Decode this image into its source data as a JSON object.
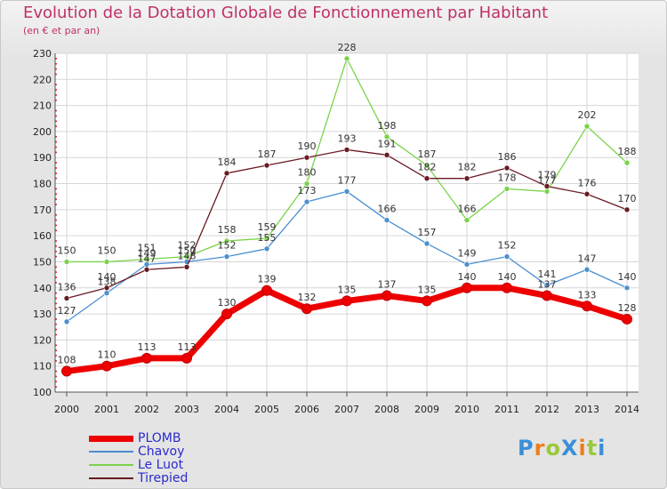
{
  "chart_data": {
    "type": "line",
    "title": "Evolution de la Dotation Globale de Fonctionnement par Habitant",
    "subtitle": "(en € et par an)",
    "x": [
      2000,
      2001,
      2002,
      2003,
      2004,
      2005,
      2006,
      2007,
      2008,
      2009,
      2010,
      2011,
      2012,
      2013,
      2014
    ],
    "ylim": [
      100,
      230
    ],
    "yticks": [
      100,
      110,
      120,
      130,
      140,
      150,
      160,
      170,
      180,
      190,
      200,
      210,
      220,
      230
    ],
    "grid": true,
    "legend_position": "bottom-left",
    "series": [
      {
        "name": "PLOMB",
        "color": "#ee0000",
        "values": [
          108,
          110,
          113,
          113,
          130,
          139,
          132,
          135,
          137,
          135,
          140,
          140,
          137,
          133,
          128
        ]
      },
      {
        "name": "Chavoy",
        "color": "#4a8fd0",
        "values": [
          127,
          138,
          149,
          150,
          152,
          155,
          173,
          177,
          166,
          157,
          149,
          152,
          141,
          147,
          140
        ]
      },
      {
        "name": "Le Luot",
        "color": "#7ad34a",
        "values": [
          150,
          150,
          151,
          152,
          158,
          159,
          180,
          228,
          198,
          187,
          166,
          178,
          177,
          202,
          188
        ]
      },
      {
        "name": "Tirepied",
        "color": "#6a1a22",
        "values": [
          136,
          140,
          147,
          148,
          184,
          187,
          190,
          193,
          191,
          182,
          182,
          186,
          179,
          176,
          170
        ]
      }
    ]
  },
  "logo": {
    "text": "ProXiti",
    "letter_colors": [
      "#3a8fd8",
      "#ef7d1a",
      "#9ac93a",
      "#3a8fd8",
      "#ef7d1a",
      "#9ac93a",
      "#3a8fd8"
    ]
  }
}
